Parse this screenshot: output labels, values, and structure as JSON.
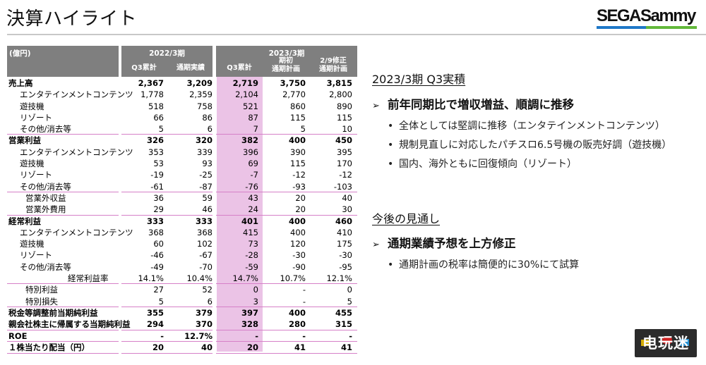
{
  "header": {
    "title": "決算ハイライト",
    "logo": {
      "text_sega": "SEGA",
      "text_sammy": "Sammy",
      "bar_colors": [
        "#1f78c8",
        "#62b83a"
      ]
    }
  },
  "table": {
    "unit": "(億円)",
    "group_2022": {
      "period": "2022/3期",
      "cols": [
        "Q3累計",
        "通期実績"
      ]
    },
    "group_2023": {
      "period": "2023/3期",
      "cols": [
        "Q3累計",
        "期初\n通期計画",
        "2/9修正\n通期計画"
      ],
      "col1_line1": "期初",
      "col1_line2": "通期計画",
      "col2_line1": "2/9修正",
      "col2_line2": "通期計画"
    },
    "highlight_color": "#ebc3e6",
    "header_bg": "#7f7f7f",
    "rows": [
      {
        "label": "売上高",
        "values": [
          "2,367",
          "3,209",
          "2,719",
          "3,750",
          "3,815"
        ],
        "style": "bold"
      },
      {
        "label": "エンタテインメントコンテンツ",
        "values": [
          "1,778",
          "2,359",
          "2,104",
          "2,770",
          "2,800"
        ],
        "style": "sub"
      },
      {
        "label": "遊技機",
        "values": [
          "518",
          "758",
          "521",
          "860",
          "890"
        ],
        "style": "sub"
      },
      {
        "label": "リゾート",
        "values": [
          "66",
          "86",
          "87",
          "115",
          "115"
        ],
        "style": "sub"
      },
      {
        "label": "その他/消去等",
        "values": [
          "5",
          "6",
          "7",
          "5",
          "10"
        ],
        "style": "sub"
      },
      {
        "label": "営業利益",
        "values": [
          "326",
          "320",
          "382",
          "400",
          "450"
        ],
        "style": "bold"
      },
      {
        "label": "エンタテインメントコンテンツ",
        "values": [
          "353",
          "339",
          "396",
          "390",
          "395"
        ],
        "style": "sub"
      },
      {
        "label": "遊技機",
        "values": [
          "53",
          "93",
          "69",
          "115",
          "170"
        ],
        "style": "sub"
      },
      {
        "label": "リゾート",
        "values": [
          "-19",
          "-25",
          "-7",
          "-12",
          "-12"
        ],
        "style": "sub"
      },
      {
        "label": "その他/消去等",
        "values": [
          "-61",
          "-87",
          "-76",
          "-93",
          "-103"
        ],
        "style": "sub"
      },
      {
        "label": "営業外収益",
        "values": [
          "36",
          "59",
          "43",
          "20",
          "40"
        ],
        "style": "sub2"
      },
      {
        "label": "営業外費用",
        "values": [
          "29",
          "46",
          "24",
          "20",
          "30"
        ],
        "style": "sub2"
      },
      {
        "label": "経常利益",
        "values": [
          "333",
          "333",
          "401",
          "400",
          "460"
        ],
        "style": "bold"
      },
      {
        "label": "エンタテインメントコンテンツ",
        "values": [
          "368",
          "368",
          "415",
          "400",
          "410"
        ],
        "style": "sub"
      },
      {
        "label": "遊技機",
        "values": [
          "60",
          "102",
          "73",
          "120",
          "175"
        ],
        "style": "sub"
      },
      {
        "label": "リゾート",
        "values": [
          "-46",
          "-67",
          "-28",
          "-30",
          "-30"
        ],
        "style": "sub"
      },
      {
        "label": "その他/消去等",
        "values": [
          "-49",
          "-70",
          "-59",
          "-90",
          "-95"
        ],
        "style": "sub"
      },
      {
        "label": "経常利益率",
        "values": [
          "14.1%",
          "10.4%",
          "14.7%",
          "10.7%",
          "12.1%"
        ],
        "style": "ratio"
      },
      {
        "label": "特別利益",
        "values": [
          "27",
          "52",
          "0",
          "-",
          "0"
        ],
        "style": "sub2"
      },
      {
        "label": "特別損失",
        "values": [
          "5",
          "6",
          "3",
          "-",
          "5"
        ],
        "style": "sub2"
      },
      {
        "label": "税金等調整前当期純利益",
        "values": [
          "355",
          "379",
          "397",
          "400",
          "455"
        ],
        "style": "bold"
      },
      {
        "label": "親会社株主に帰属する当期純利益",
        "values": [
          "294",
          "370",
          "328",
          "280",
          "315"
        ],
        "style": "bold"
      },
      {
        "label": "ROE",
        "values": [
          "-",
          "12.7%",
          "-",
          "-",
          "-"
        ],
        "style": "bold"
      },
      {
        "label": "１株当たり配当（円）",
        "values": [
          "20",
          "40",
          "20",
          "41",
          "41"
        ],
        "style": "bold"
      }
    ]
  },
  "panel": {
    "section1": {
      "heading": "2023/3期 Q3実積",
      "point": "前年同期比で増収増益、順調に推移",
      "bullets": [
        "全体としては堅調に推移（エンタテインメントコンテンツ）",
        "規制見直しに対応したパチスロ6.5号機の販売好調（遊技機）",
        "国内、海外ともに回復傾向（リゾート）"
      ]
    },
    "section2": {
      "heading": "今後の見通し",
      "point": "通期業績予想を上方修正",
      "bullets": [
        "通期計画の税率は簡便的に30%にて試算"
      ]
    },
    "arrow_glyph": "➢",
    "bullet_glyph": "•"
  },
  "watermark": {
    "text": "电玩迷"
  }
}
